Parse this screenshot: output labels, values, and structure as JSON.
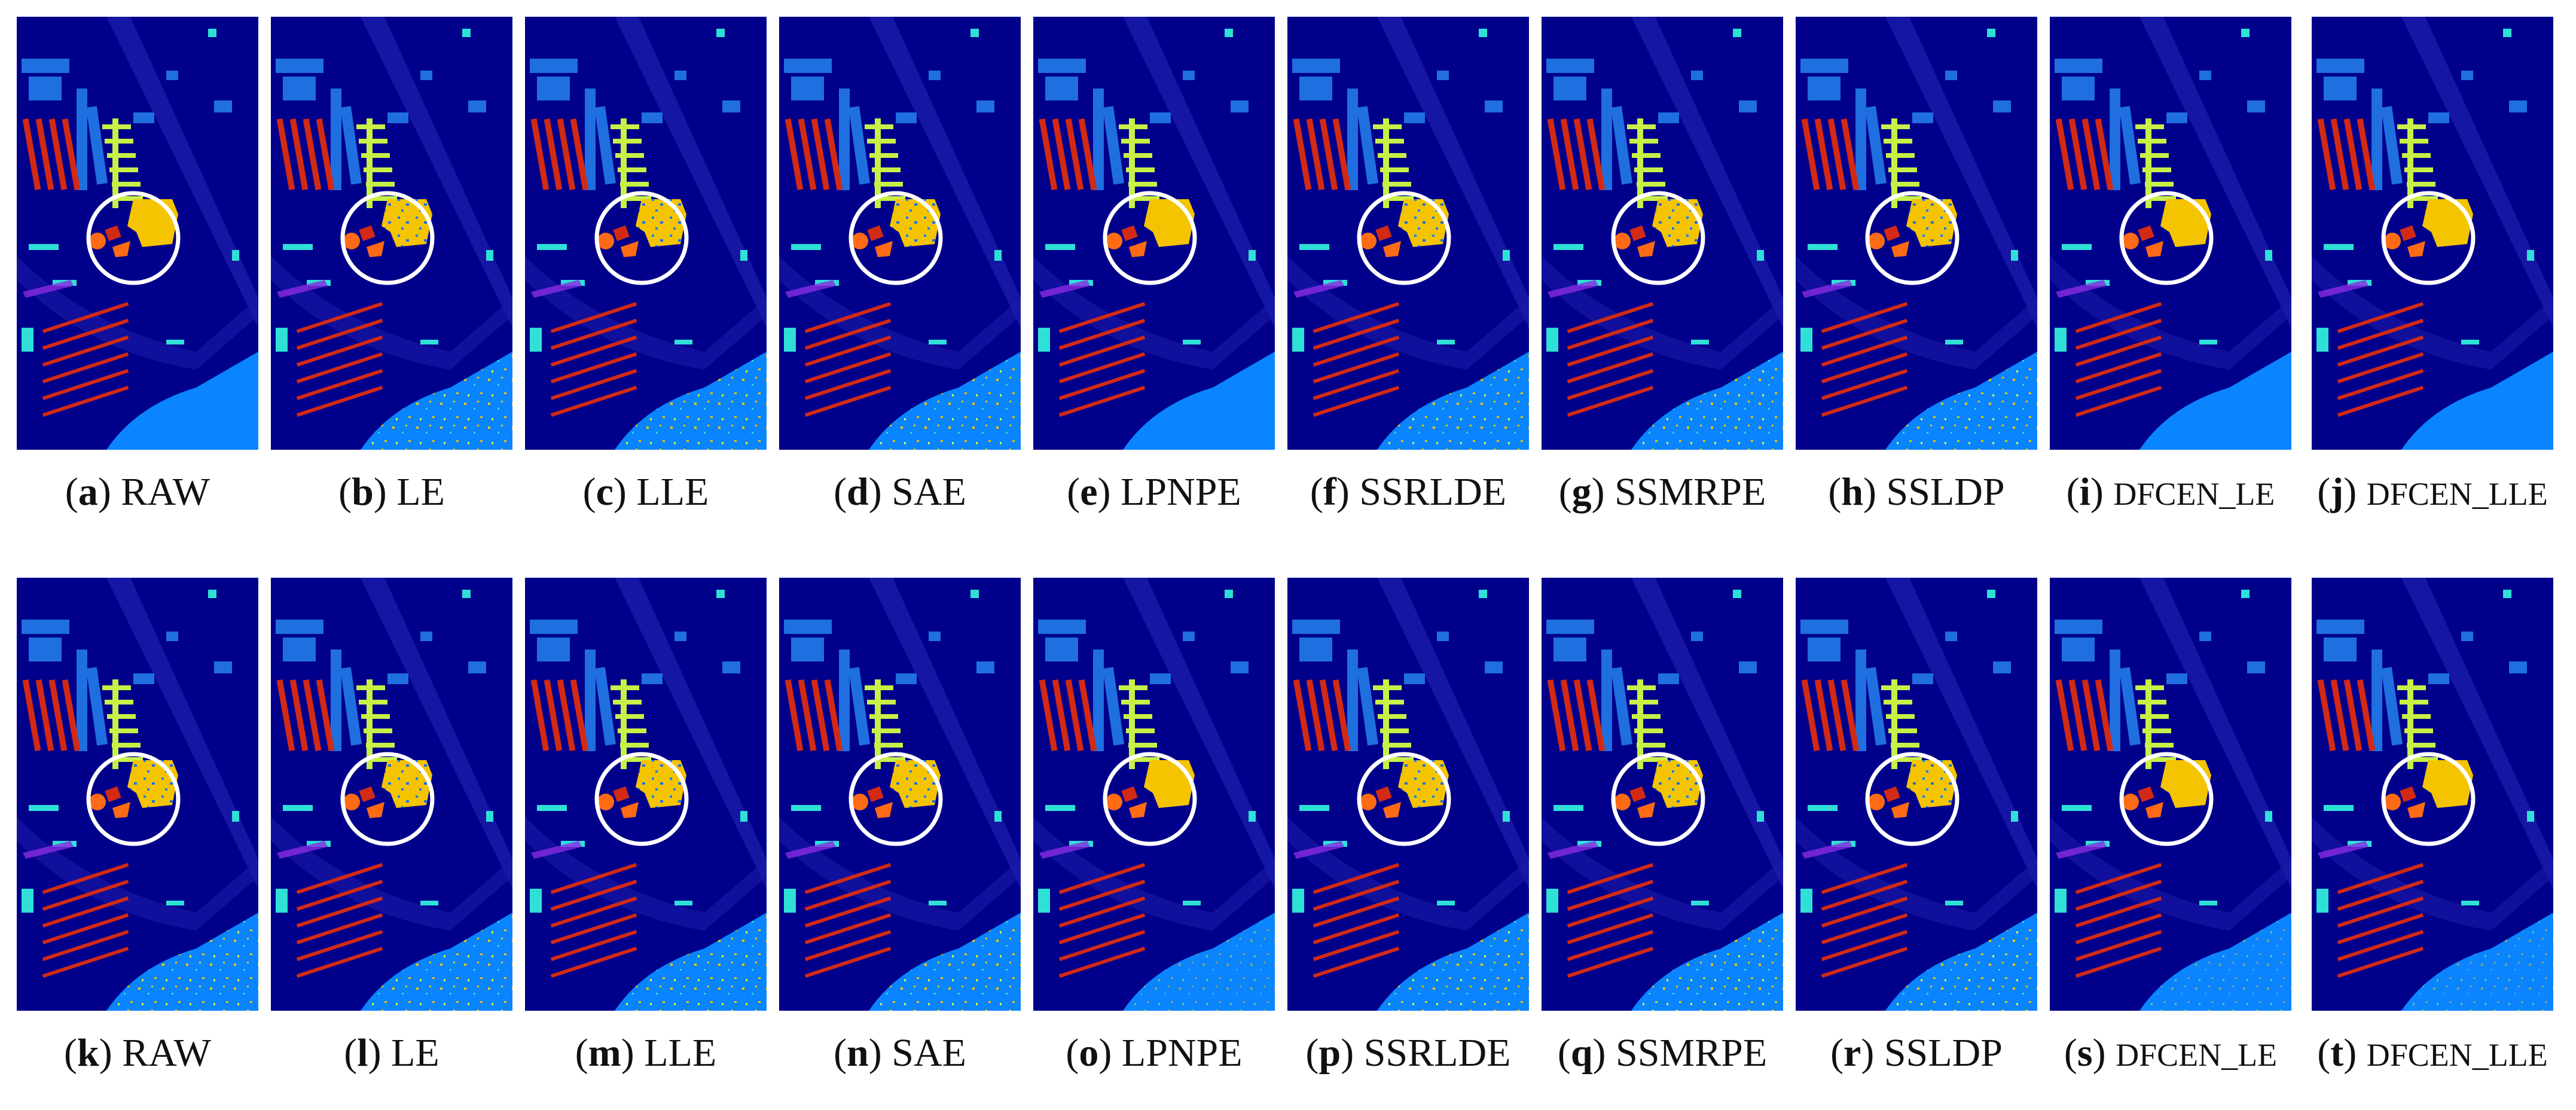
{
  "figure": {
    "row1": [
      {
        "letter": "a",
        "method": "RAW"
      },
      {
        "letter": "b",
        "method": "LE"
      },
      {
        "letter": "c",
        "method": "LLE"
      },
      {
        "letter": "d",
        "method": "SAE"
      },
      {
        "letter": "e",
        "method": "LPNPE"
      },
      {
        "letter": "f",
        "method": "SSRLDE"
      },
      {
        "letter": "g",
        "method": "SSMRPE"
      },
      {
        "letter": "h",
        "method": "SSLDP"
      },
      {
        "letter": "i",
        "method": "DFCEN_LE"
      },
      {
        "letter": "j",
        "method": "DFCEN_LLE"
      }
    ],
    "row2": [
      {
        "letter": "k",
        "method": "RAW"
      },
      {
        "letter": "l",
        "method": "LE"
      },
      {
        "letter": "m",
        "method": "LLE"
      },
      {
        "letter": "n",
        "method": "SAE"
      },
      {
        "letter": "o",
        "method": "LPNPE"
      },
      {
        "letter": "p",
        "method": "SSRLDE"
      },
      {
        "letter": "q",
        "method": "SSMRPE"
      },
      {
        "letter": "r",
        "method": "SSLDP"
      },
      {
        "letter": "s",
        "method": "DFCEN_LE"
      },
      {
        "letter": "t",
        "method": "DFCEN_LLE"
      }
    ]
  },
  "colors": {
    "background": "#00008b",
    "road": "#1a1aa8",
    "meadow": "#0a84ff",
    "building": "#1f6fe0",
    "brick": "#d22a14",
    "tree": "#c8f046",
    "roof": "#f5c400",
    "shadow": "#ff6a14",
    "gravel": "#2ee0d6",
    "soil": "#8a2be2",
    "circle": "#ffffff"
  },
  "icons": {
    "map": "classification-map-thumbnail",
    "highlight": "white-circle-highlight"
  }
}
